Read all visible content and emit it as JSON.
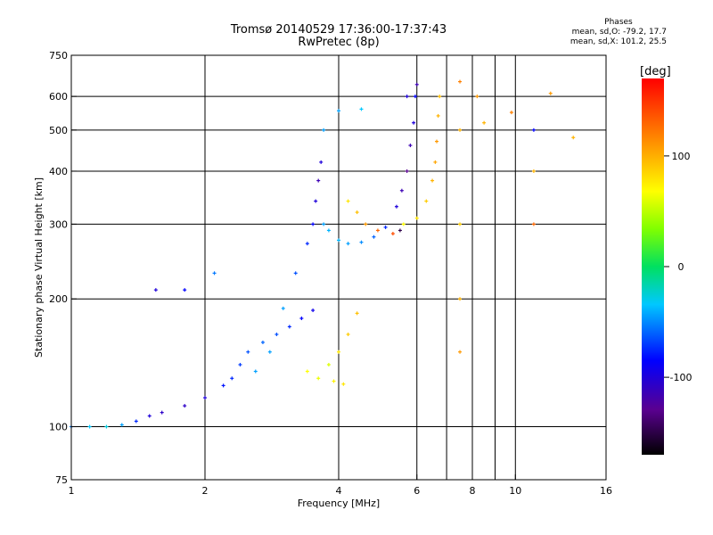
{
  "header": {
    "title_line1": "Tromsø 20140529 17:36:00-17:37:43",
    "title_line2": "RwPretec (8p)"
  },
  "phase_stats": {
    "heading": "Phases",
    "line_o": "mean, sd,O: -79.2, 17.7",
    "line_x": "mean, sd,X: 101.2, 25.5"
  },
  "colorbar": {
    "label": "[deg]",
    "ticks": [
      {
        "value": 100,
        "label": "100"
      },
      {
        "value": 0,
        "label": "0"
      },
      {
        "value": -100,
        "label": "-100"
      }
    ],
    "range": [
      -170,
      170
    ]
  },
  "chart_data": {
    "type": "scatter",
    "title": "Tromsø 20140529 17:36:00-17:37:43",
    "subtitle": "RwPretec (8p)",
    "xlabel": "Frequency [MHz]",
    "ylabel": "Stationary phase Virtual Height [km]",
    "xscale": "log",
    "yscale": "log",
    "xlim": [
      1,
      16
    ],
    "ylim": [
      75,
      750
    ],
    "grid": true,
    "xticks": [
      {
        "value": 1,
        "label": "1"
      },
      {
        "value": 2,
        "label": "2"
      },
      {
        "value": 4,
        "label": "4"
      },
      {
        "value": 6,
        "label": "6"
      },
      {
        "value": 8,
        "label": "8"
      },
      {
        "value": 10,
        "label": "10"
      },
      {
        "value": 16,
        "label": "16"
      }
    ],
    "xgrid": [
      2,
      4,
      6,
      7,
      8,
      9,
      10
    ],
    "yticks": [
      {
        "value": 75,
        "label": "75"
      },
      {
        "value": 100,
        "label": "100"
      },
      {
        "value": 200,
        "label": "200"
      },
      {
        "value": 300,
        "label": "300"
      },
      {
        "value": 400,
        "label": "400"
      },
      {
        "value": 500,
        "label": "500"
      },
      {
        "value": 600,
        "label": "600"
      },
      {
        "value": 750,
        "label": "750"
      }
    ],
    "ygrid": [
      100,
      200,
      300,
      400,
      500,
      600
    ],
    "colorscale": "phase (deg), black-purple-blue-cyan-green-yellow-orange-red",
    "series": [
      {
        "points": [
          [
            1.0,
            100,
            -70
          ],
          [
            1.1,
            100,
            -50
          ],
          [
            1.2,
            100,
            -40
          ],
          [
            1.3,
            101,
            -60
          ],
          [
            1.4,
            103,
            -90
          ],
          [
            1.5,
            106,
            -110
          ],
          [
            1.6,
            108,
            -115
          ],
          [
            1.8,
            112,
            -115
          ],
          [
            2.0,
            117,
            -110
          ],
          [
            2.2,
            125,
            -95
          ],
          [
            2.3,
            130,
            -90
          ],
          [
            2.4,
            140,
            -85
          ],
          [
            2.5,
            150,
            -80
          ],
          [
            2.7,
            158,
            -75
          ],
          [
            2.9,
            165,
            -80
          ],
          [
            3.1,
            172,
            -90
          ],
          [
            3.3,
            180,
            -100
          ],
          [
            3.5,
            188,
            -105
          ]
        ]
      },
      {
        "points": [
          [
            2.6,
            135,
            -60
          ],
          [
            2.8,
            150,
            -60
          ],
          [
            3.0,
            190,
            -60
          ],
          [
            3.2,
            230,
            -80
          ],
          [
            3.4,
            270,
            -90
          ],
          [
            3.5,
            300,
            -100
          ],
          [
            3.55,
            340,
            -110
          ],
          [
            3.6,
            380,
            -120
          ],
          [
            3.65,
            420,
            -110
          ],
          [
            3.7,
            500,
            -60
          ]
        ]
      },
      {
        "points": [
          [
            3.7,
            300,
            -60
          ],
          [
            3.8,
            290,
            -55
          ],
          [
            4.0,
            275,
            -55
          ],
          [
            4.2,
            270,
            -60
          ],
          [
            4.5,
            272,
            -65
          ],
          [
            4.8,
            280,
            -75
          ],
          [
            5.1,
            295,
            -90
          ],
          [
            5.4,
            330,
            -110
          ],
          [
            5.55,
            360,
            -120
          ],
          [
            5.7,
            400,
            -130
          ],
          [
            5.8,
            460,
            -120
          ],
          [
            5.9,
            520,
            -110
          ],
          [
            5.95,
            600,
            -100
          ],
          [
            6.0,
            640,
            -120
          ]
        ]
      },
      {
        "points": [
          [
            3.8,
            140,
            60
          ],
          [
            4.0,
            150,
            80
          ],
          [
            4.2,
            165,
            90
          ],
          [
            4.4,
            185,
            95
          ],
          [
            3.4,
            135,
            70
          ],
          [
            3.6,
            130,
            65
          ],
          [
            3.9,
            128,
            75
          ],
          [
            4.1,
            126,
            80
          ]
        ]
      },
      {
        "points": [
          [
            4.2,
            340,
            80
          ],
          [
            4.4,
            320,
            95
          ],
          [
            4.6,
            300,
            110
          ],
          [
            4.9,
            290,
            130
          ],
          [
            5.3,
            285,
            140
          ],
          [
            5.5,
            290,
            -150
          ]
        ]
      },
      {
        "points": [
          [
            5.6,
            300,
            70
          ],
          [
            6.0,
            310,
            80
          ],
          [
            6.3,
            340,
            90
          ],
          [
            6.5,
            380,
            100
          ],
          [
            6.6,
            420,
            105
          ],
          [
            6.65,
            470,
            110
          ],
          [
            6.7,
            540,
            100
          ],
          [
            6.75,
            600,
            95
          ]
        ]
      },
      {
        "points": [
          [
            7.5,
            650,
            120
          ],
          [
            7.5,
            500,
            100
          ],
          [
            7.5,
            300,
            90
          ],
          [
            7.5,
            200,
            100
          ],
          [
            7.5,
            150,
            110
          ],
          [
            8.2,
            600,
            110
          ],
          [
            8.5,
            520,
            100
          ],
          [
            9.8,
            550,
            120
          ],
          [
            11,
            500,
            -100
          ],
          [
            11,
            400,
            100
          ],
          [
            11,
            300,
            130
          ],
          [
            12,
            610,
            110
          ],
          [
            13.5,
            480,
            100
          ],
          [
            4.0,
            555,
            -60
          ],
          [
            4.5,
            560,
            -50
          ],
          [
            5.7,
            600,
            -110
          ],
          [
            2.1,
            230,
            -70
          ],
          [
            1.55,
            210,
            -110
          ],
          [
            1.8,
            210,
            -100
          ]
        ]
      }
    ]
  }
}
